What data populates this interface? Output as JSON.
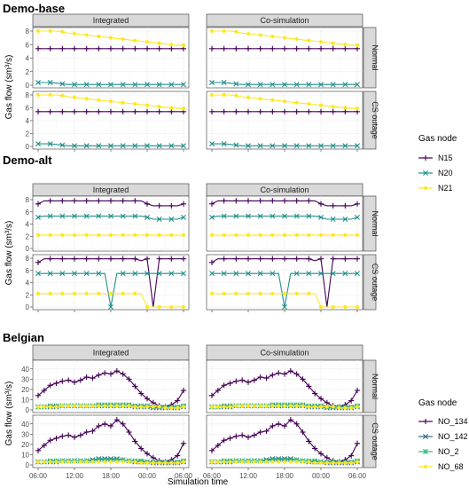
{
  "chart_data": [
    {
      "type": "line",
      "title": "Demo-base",
      "columns": [
        "Integrated",
        "Co-simulation"
      ],
      "rows": [
        "Normal",
        "CS outage"
      ],
      "ylabel": "Gas flow (sm³/s)",
      "ylim": [
        0,
        8
      ],
      "yticks": [
        0,
        2,
        4,
        6,
        8
      ],
      "xlim": [
        0,
        24
      ],
      "legend_title": "Gas node",
      "x": [
        0,
        1,
        2,
        3,
        4,
        5,
        6,
        7,
        8,
        9,
        10,
        11,
        12,
        13,
        14,
        15,
        16,
        17,
        18,
        19,
        20,
        21,
        22,
        23,
        24
      ],
      "panels": {
        "Normal": [
          {
            "name": "N15",
            "color": "#440154",
            "marker": "plus",
            "values": [
              5.4,
              5.4,
              5.4,
              5.4,
              5.4,
              5.4,
              5.4,
              5.4,
              5.4,
              5.4,
              5.4,
              5.4,
              5.4,
              5.4,
              5.4,
              5.4,
              5.4,
              5.4,
              5.4,
              5.4,
              5.4,
              5.4,
              5.4,
              5.4,
              5.4
            ]
          },
          {
            "name": "N20",
            "color": "#21908C",
            "marker": "x",
            "values": [
              0.4,
              0.4,
              0.4,
              0.3,
              0.2,
              0.1,
              0.1,
              0.1,
              0.1,
              0.1,
              0.1,
              0.1,
              0.1,
              0.1,
              0.1,
              0.1,
              0.1,
              0.1,
              0.1,
              0.1,
              0.1,
              0.1,
              0.1,
              0.1,
              0.1
            ]
          },
          {
            "name": "N21",
            "color": "#FDE725",
            "marker": "dot",
            "values": [
              8.0,
              8.0,
              8.0,
              8.0,
              7.9,
              7.7,
              7.6,
              7.5,
              7.4,
              7.3,
              7.2,
              7.1,
              7.0,
              6.9,
              6.8,
              6.7,
              6.6,
              6.5,
              6.4,
              6.3,
              6.2,
              6.1,
              6.0,
              5.9,
              5.9
            ]
          }
        ],
        "CS outage": [
          {
            "name": "N15",
            "color": "#440154",
            "marker": "plus",
            "values": [
              5.4,
              5.4,
              5.4,
              5.4,
              5.4,
              5.4,
              5.4,
              5.4,
              5.4,
              5.4,
              5.4,
              5.4,
              5.4,
              5.4,
              5.4,
              5.4,
              5.4,
              5.4,
              5.4,
              5.4,
              5.4,
              5.4,
              5.4,
              5.4,
              5.4
            ]
          },
          {
            "name": "N20",
            "color": "#21908C",
            "marker": "x",
            "values": [
              0.4,
              0.4,
              0.4,
              0.3,
              0.2,
              0.1,
              0.1,
              0.1,
              0.1,
              0.1,
              0.1,
              0.1,
              0.1,
              0.1,
              0.1,
              0.1,
              0.1,
              0.1,
              0.1,
              0.1,
              0.1,
              0.1,
              0.1,
              0.1,
              0.1
            ]
          },
          {
            "name": "N21",
            "color": "#FDE725",
            "marker": "dot",
            "values": [
              8.0,
              8.0,
              8.0,
              8.0,
              7.9,
              7.7,
              7.6,
              7.5,
              7.4,
              7.3,
              7.2,
              7.1,
              7.0,
              6.9,
              6.8,
              6.7,
              6.6,
              6.5,
              6.4,
              6.3,
              6.2,
              6.1,
              6.0,
              5.9,
              5.9
            ]
          }
        ]
      }
    },
    {
      "type": "line",
      "title": "Demo-alt",
      "columns": [
        "Integrated",
        "Co-simulation"
      ],
      "rows": [
        "Normal",
        "CS outage"
      ],
      "ylabel": "Gas flow (sm³/s)",
      "ylim": [
        0,
        8
      ],
      "yticks": [
        0,
        2,
        4,
        6,
        8
      ],
      "xlim": [
        0,
        24
      ],
      "x": [
        0,
        1,
        2,
        3,
        4,
        5,
        6,
        7,
        8,
        9,
        10,
        11,
        12,
        13,
        14,
        15,
        16,
        17,
        18,
        19,
        20,
        21,
        22,
        23,
        24
      ],
      "panels": {
        "Normal": [
          {
            "name": "N15",
            "color": "#440154",
            "marker": "plus",
            "values": [
              7.3,
              7.8,
              7.8,
              7.8,
              7.8,
              7.8,
              7.8,
              7.8,
              7.8,
              7.8,
              7.8,
              7.8,
              7.8,
              7.8,
              7.8,
              7.8,
              7.8,
              7.8,
              7.3,
              7.0,
              7.0,
              7.0,
              7.0,
              7.0,
              7.3
            ]
          },
          {
            "name": "N20",
            "color": "#21908C",
            "marker": "x",
            "values": [
              5.1,
              5.3,
              5.3,
              5.3,
              5.3,
              5.3,
              5.3,
              5.3,
              5.3,
              5.3,
              5.3,
              5.3,
              5.3,
              5.3,
              5.3,
              5.3,
              5.3,
              5.3,
              5.1,
              4.8,
              4.8,
              4.8,
              4.8,
              4.8,
              5.1
            ]
          },
          {
            "name": "N21",
            "color": "#FDE725",
            "marker": "dot",
            "values": [
              2.2,
              2.2,
              2.2,
              2.2,
              2.2,
              2.2,
              2.2,
              2.2,
              2.2,
              2.2,
              2.2,
              2.2,
              2.2,
              2.2,
              2.2,
              2.2,
              2.2,
              2.2,
              2.2,
              2.2,
              2.2,
              2.2,
              2.2,
              2.2,
              2.2
            ]
          }
        ],
        "CS outage": [
          {
            "name": "N15",
            "color": "#440154",
            "marker": "plus",
            "values": [
              7.3,
              7.9,
              7.9,
              7.9,
              7.9,
              7.9,
              7.9,
              7.9,
              7.9,
              7.9,
              7.9,
              7.9,
              7.9,
              7.9,
              7.9,
              7.9,
              7.9,
              7.6,
              7.9,
              0.0,
              7.9,
              7.9,
              7.9,
              7.9,
              7.9
            ]
          },
          {
            "name": "N20",
            "color": "#21908C",
            "marker": "x",
            "values": [
              5.5,
              5.5,
              5.5,
              5.5,
              5.5,
              5.5,
              5.5,
              5.5,
              5.5,
              5.5,
              5.5,
              5.5,
              0.0,
              5.5,
              5.5,
              5.5,
              5.5,
              5.5,
              5.5,
              5.5,
              5.5,
              5.5,
              5.5,
              5.5,
              5.5
            ]
          },
          {
            "name": "N21",
            "color": "#FDE725",
            "marker": "dot",
            "values": [
              2.2,
              2.2,
              2.2,
              2.2,
              2.2,
              2.2,
              2.2,
              2.2,
              2.2,
              2.2,
              2.2,
              2.2,
              2.2,
              2.2,
              2.2,
              2.2,
              2.2,
              2.2,
              0.0,
              0.0,
              0.0,
              0.0,
              0.0,
              0.0,
              0.0
            ]
          }
        ]
      }
    },
    {
      "type": "line",
      "title": "Belgian",
      "columns": [
        "Integrated",
        "Co-simulation"
      ],
      "rows": [
        "Normal",
        "CS outage"
      ],
      "ylabel": "Gas flow (sm³/s)",
      "xlabel": "Simulation time",
      "ylim": [
        0,
        45
      ],
      "yticks": [
        0,
        10,
        20,
        30,
        40
      ],
      "xlim": [
        0,
        24
      ],
      "xticklabels": [
        "06:00",
        "12:00",
        "18:00",
        "00:00",
        "06:00"
      ],
      "legend_title": "Gas node",
      "x": [
        0,
        1,
        2,
        3,
        4,
        5,
        6,
        7,
        8,
        9,
        10,
        11,
        12,
        13,
        14,
        15,
        16,
        17,
        18,
        19,
        20,
        21,
        22,
        23,
        24
      ],
      "panels": {
        "Normal": [
          {
            "name": "NO_134",
            "color": "#440154",
            "marker": "plus",
            "values": [
              14,
              19,
              24,
              26,
              28,
              29,
              27,
              29,
              32,
              31,
              34,
              36,
              35,
              38,
              35,
              30,
              23,
              16,
              11,
              7,
              4,
              3,
              5,
              9,
              19
            ]
          },
          {
            "name": "NO_142",
            "color": "#31688E",
            "marker": "x",
            "values": [
              3,
              3,
              3,
              3,
              4,
              4,
              4,
              4,
              4,
              4,
              4,
              4,
              4,
              4,
              4,
              4,
              3,
              3,
              3,
              2,
              2,
              2,
              2,
              2,
              3
            ]
          },
          {
            "name": "NO_2",
            "color": "#35B779",
            "marker": "star",
            "values": [
              3,
              3,
              4,
              4,
              4,
              4,
              4,
              4,
              4,
              4,
              5,
              5,
              5,
              5,
              5,
              5,
              4,
              4,
              4,
              3,
              3,
              3,
              3,
              3,
              4
            ]
          },
          {
            "name": "NO_68",
            "color": "#FDE725",
            "marker": "dot",
            "values": [
              3,
              3,
              3,
              3,
              4,
              4,
              4,
              4,
              4,
              4,
              4,
              4,
              4,
              4,
              4,
              4,
              3,
              3,
              3,
              3,
              3,
              2,
              2,
              2,
              3
            ]
          }
        ],
        "CS outage": [
          {
            "name": "NO_134",
            "color": "#440154",
            "marker": "plus",
            "values": [
              14,
              19,
              24,
              26,
              28,
              29,
              27,
              29,
              32,
              33,
              38,
              40,
              38,
              44,
              40,
              32,
              23,
              16,
              11,
              7,
              4,
              3,
              5,
              9,
              21
            ]
          },
          {
            "name": "NO_142",
            "color": "#31688E",
            "marker": "x",
            "values": [
              3,
              3,
              3,
              3,
              4,
              4,
              4,
              4,
              4,
              5,
              6,
              6,
              6,
              6,
              5,
              4,
              3,
              3,
              3,
              2,
              2,
              2,
              2,
              2,
              3
            ]
          },
          {
            "name": "NO_2",
            "color": "#35B779",
            "marker": "star",
            "values": [
              3,
              3,
              4,
              4,
              4,
              4,
              4,
              4,
              4,
              4,
              5,
              5,
              5,
              5,
              5,
              4,
              4,
              4,
              3,
              3,
              3,
              3,
              3,
              3,
              4
            ]
          },
          {
            "name": "NO_68",
            "color": "#FDE725",
            "marker": "dot",
            "values": [
              3,
              3,
              3,
              3,
              3,
              3,
              3,
              3,
              3,
              3,
              3,
              3,
              3,
              3,
              3,
              3,
              3,
              2,
              2,
              2,
              2,
              2,
              2,
              2,
              3
            ]
          }
        ]
      }
    }
  ]
}
